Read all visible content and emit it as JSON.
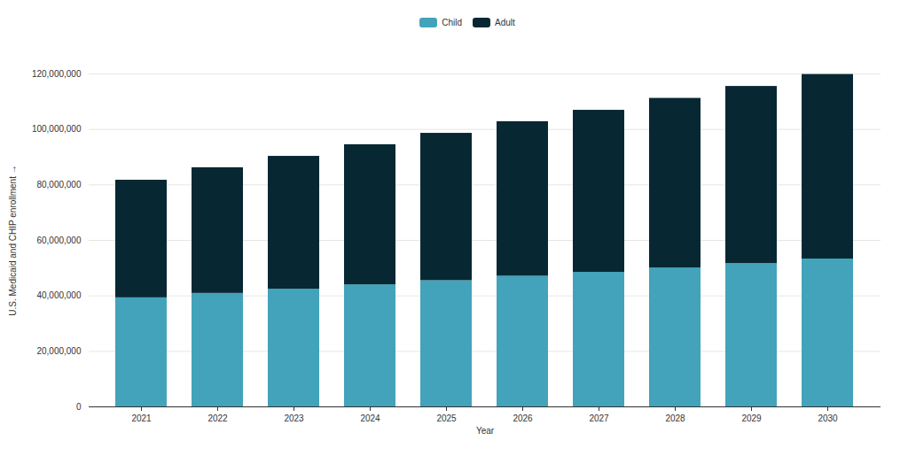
{
  "chart_data": {
    "type": "bar",
    "stacked": true,
    "x_label": "Year",
    "y_label": "U.S. Medicaid and CHIP enrollment",
    "categories": [
      "2021",
      "2022",
      "2023",
      "2024",
      "2025",
      "2026",
      "2027",
      "2028",
      "2029",
      "2030"
    ],
    "series": [
      {
        "name": "Child",
        "color": "#42a3bb",
        "values": [
          39300000,
          40900000,
          42400000,
          44000000,
          45500000,
          47100000,
          48500000,
          50100000,
          51700000,
          53300000
        ]
      },
      {
        "name": "Adult",
        "color": "#072833",
        "values": [
          42400000,
          45300000,
          47900000,
          50500000,
          53100000,
          55700000,
          58400000,
          61100000,
          63800000,
          66500000
        ]
      }
    ],
    "ylim": [
      0,
      120000000
    ],
    "yticks": [
      0,
      {
        "value": 20000000,
        "label": "20,000,000"
      },
      {
        "value": 40000000,
        "label": "40,000,000"
      },
      {
        "value": 60000000,
        "label": "60,000,000"
      },
      {
        "value": 80000000,
        "label": "80,000,000"
      },
      {
        "value": 100000000,
        "label": "100,000,000"
      },
      {
        "value": 120000000,
        "label": "120,000,000"
      }
    ],
    "grid": true,
    "legend": "top"
  }
}
